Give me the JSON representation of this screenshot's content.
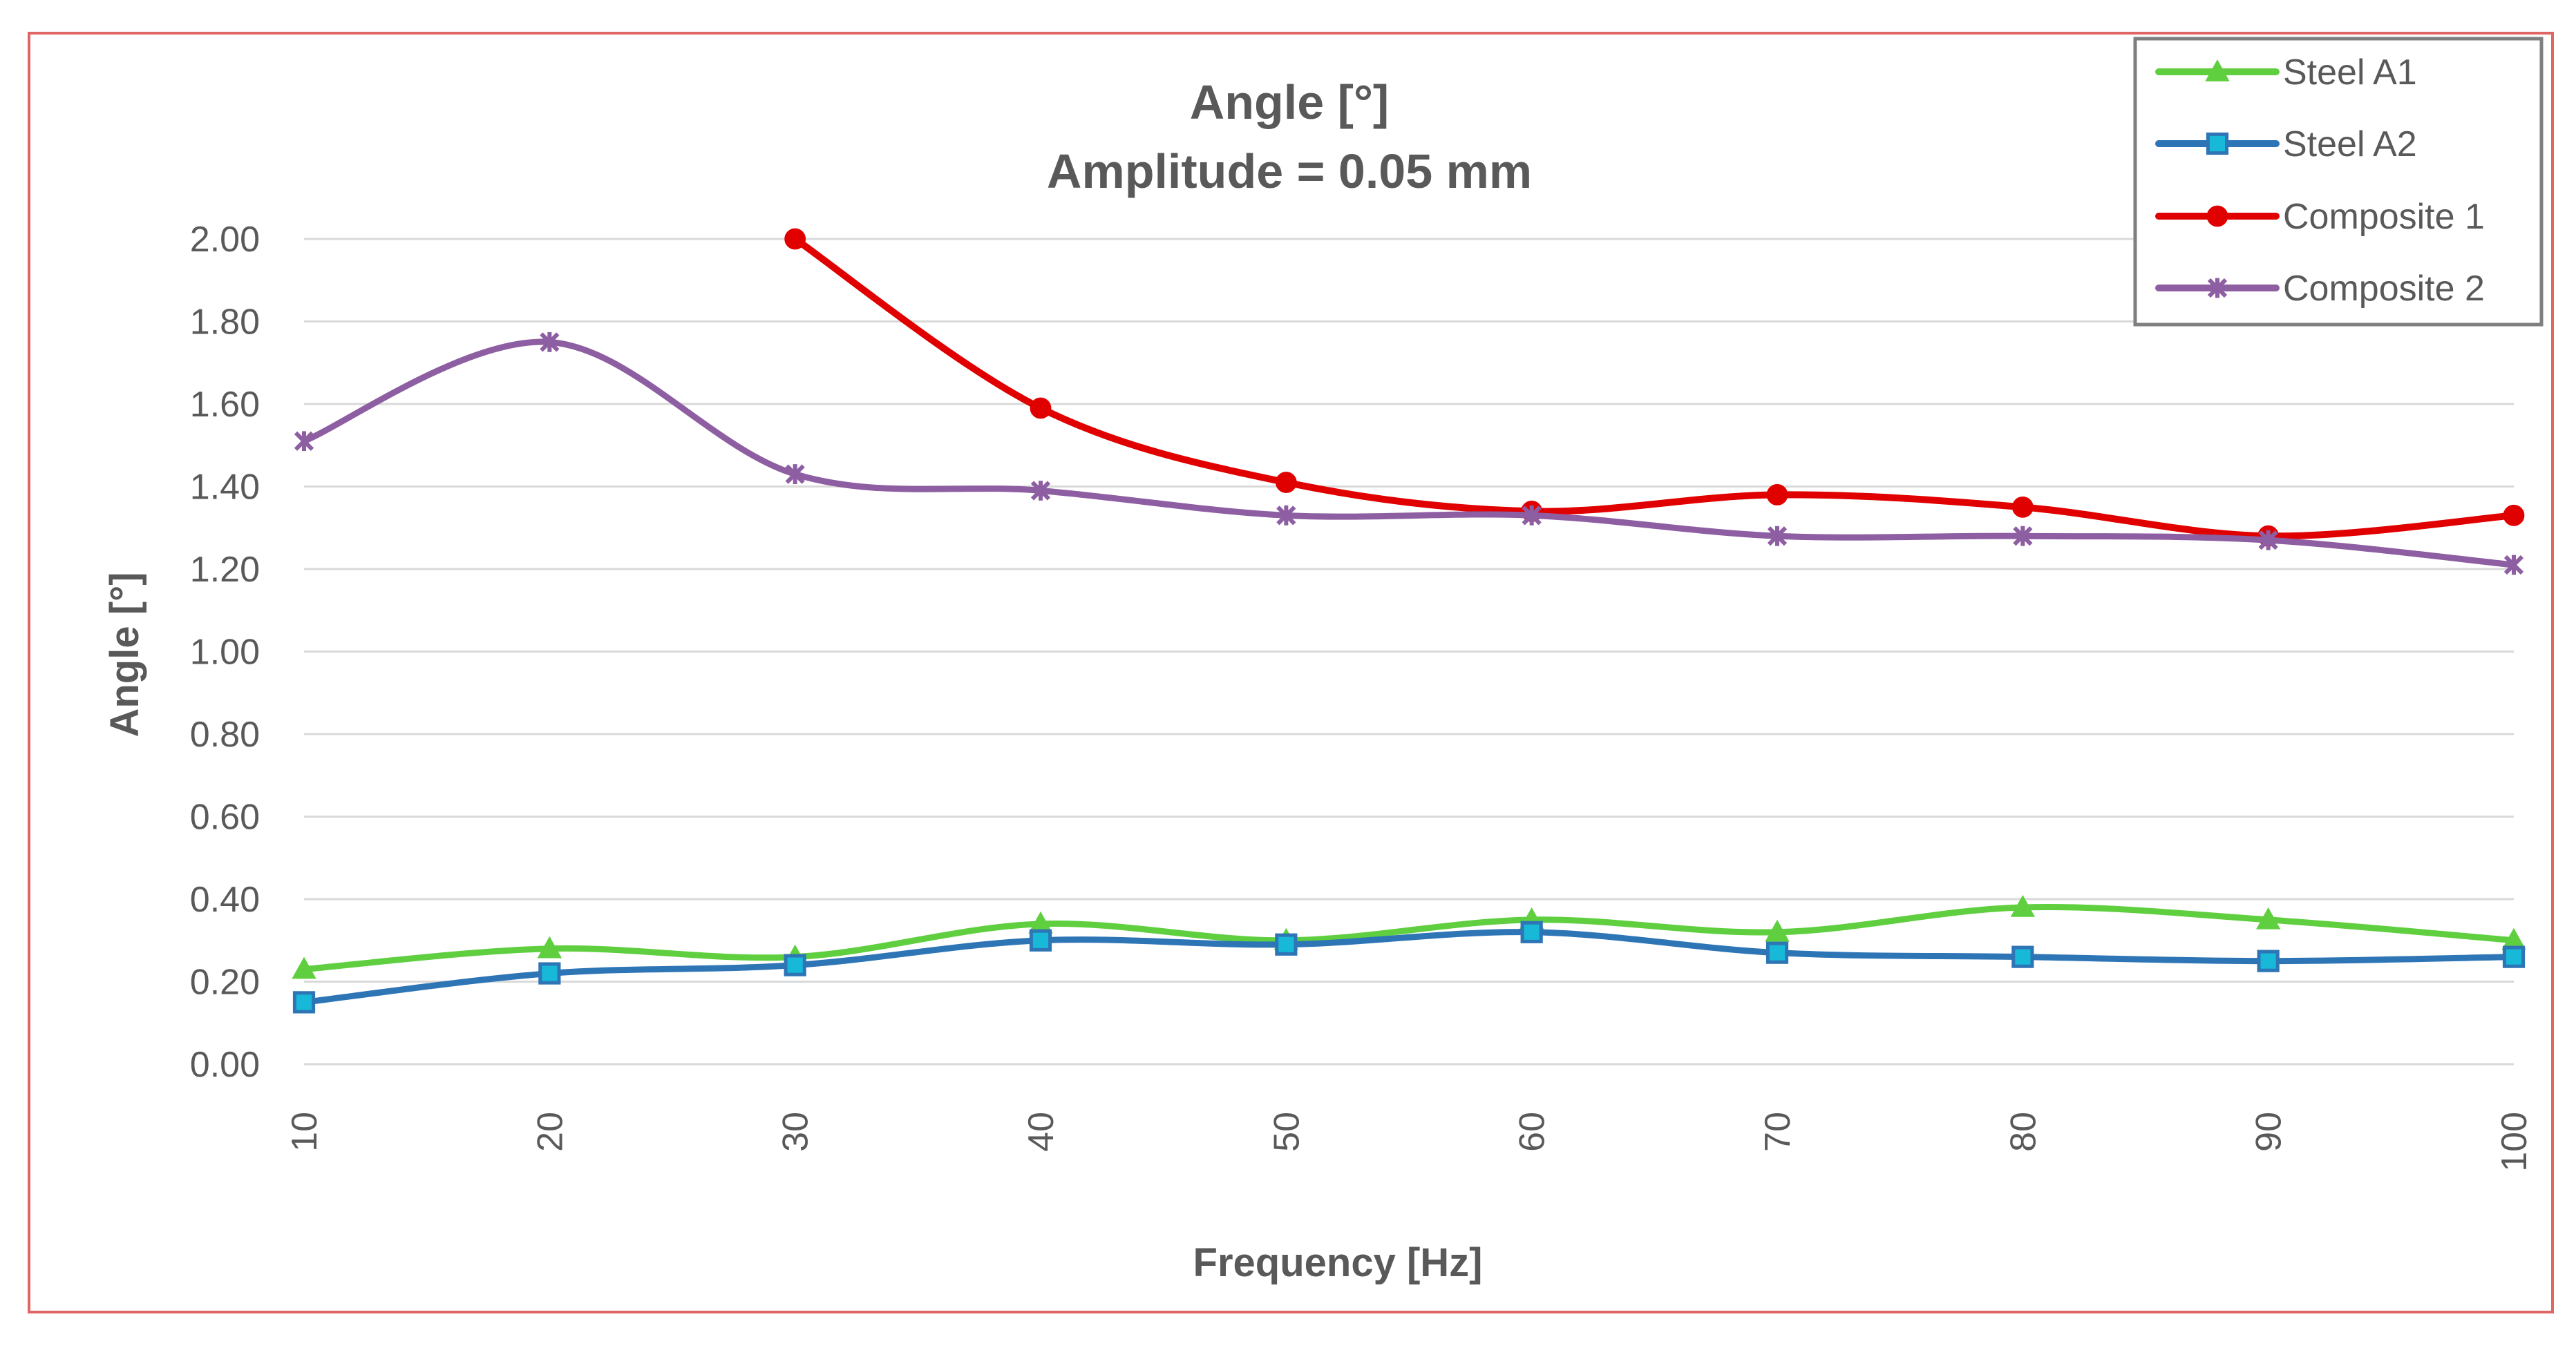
{
  "chart_data": {
    "type": "line",
    "title": "Angle [°]",
    "subtitle": "Amplitude = 0.05 mm",
    "xlabel": "Frequency [Hz]",
    "ylabel": "Angle [°]",
    "x": [
      10,
      20,
      30,
      40,
      50,
      60,
      70,
      80,
      90,
      100
    ],
    "x_tick_labels": [
      "10",
      "20",
      "30",
      "40",
      "50",
      "60",
      "70",
      "80",
      "90",
      "100"
    ],
    "ylim": [
      0,
      2
    ],
    "y_tick_labels": [
      "0.00",
      "0.20",
      "0.40",
      "0.60",
      "0.80",
      "1.00",
      "1.20",
      "1.40",
      "1.60",
      "1.80",
      "2.00"
    ],
    "y_ticks": [
      0,
      0.2,
      0.4,
      0.6,
      0.8,
      1.0,
      1.2,
      1.4,
      1.6,
      1.8,
      2.0
    ],
    "grid": "horizontal",
    "legend_position": "top-right",
    "series": [
      {
        "name": "Steel A1",
        "color": "#5fcf3f",
        "marker": "triangle",
        "values": [
          0.23,
          0.28,
          0.26,
          0.34,
          0.3,
          0.35,
          0.32,
          0.38,
          0.35,
          0.3
        ]
      },
      {
        "name": "Steel A2",
        "color": "#2e75b6",
        "marker": "square",
        "marker_fill": "#17b8d8",
        "values": [
          0.15,
          0.22,
          0.24,
          0.3,
          0.29,
          0.32,
          0.27,
          0.26,
          0.25,
          0.26
        ]
      },
      {
        "name": "Composite 1",
        "color": "#e00000",
        "marker": "circle",
        "values": [
          null,
          null,
          2.0,
          1.59,
          1.41,
          1.34,
          1.38,
          1.35,
          1.28,
          1.33
        ]
      },
      {
        "name": "Composite 2",
        "color": "#8e5ea2",
        "marker": "star",
        "values": [
          1.51,
          1.75,
          1.43,
          1.39,
          1.33,
          1.33,
          1.28,
          1.28,
          1.27,
          1.21
        ]
      }
    ]
  }
}
